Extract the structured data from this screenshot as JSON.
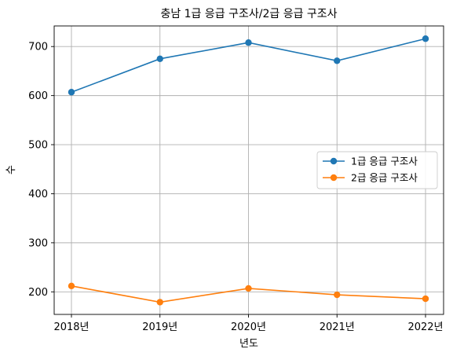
{
  "chart_data": {
    "type": "line",
    "title": "충남 1급 응급 구조사/2급 응급 구조사",
    "xlabel": "년도",
    "ylabel": "수",
    "categories": [
      "2018년",
      "2019년",
      "2020년",
      "2021년",
      "2022년"
    ],
    "series": [
      {
        "name": "1급 응급 구조사",
        "color": "#1f77b4",
        "values": [
          607,
          675,
          708,
          671,
          716
        ]
      },
      {
        "name": "2급 응급 구조사",
        "color": "#ff7f0e",
        "values": [
          212,
          179,
          207,
          194,
          186
        ]
      }
    ],
    "ylim": [
      154,
      742
    ],
    "yticks": [
      200,
      300,
      400,
      500,
      600,
      700
    ],
    "grid": true,
    "legend_position": "center-right"
  }
}
